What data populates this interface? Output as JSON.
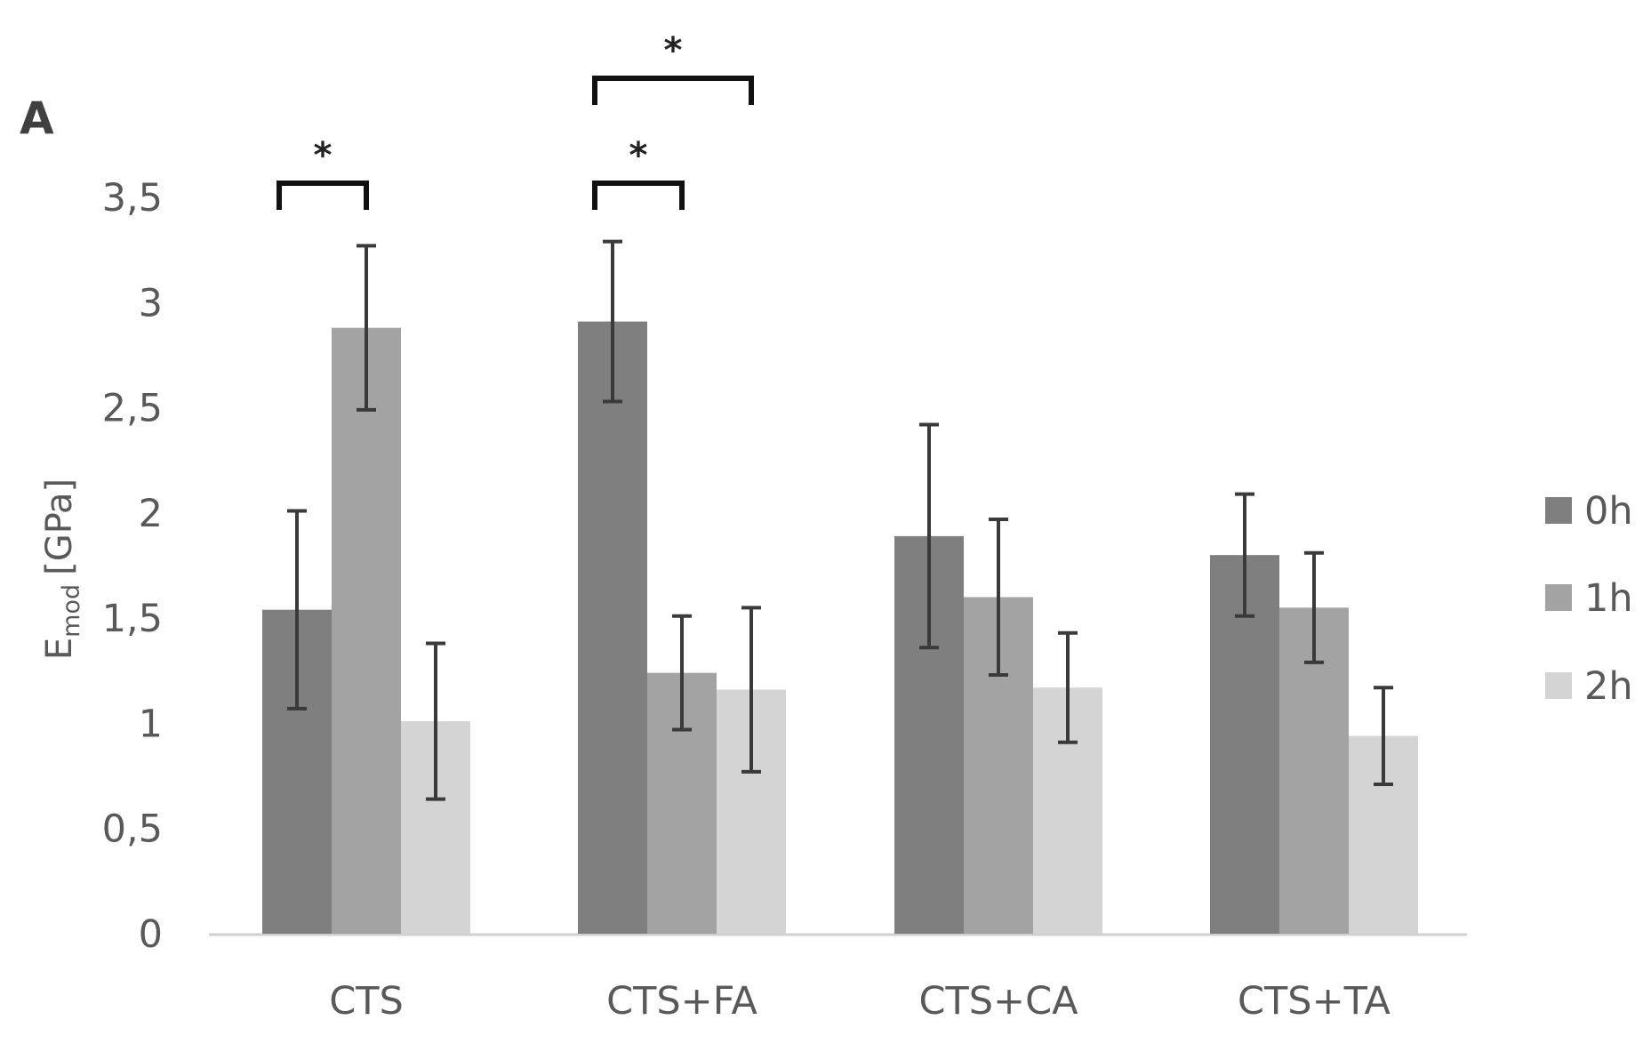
{
  "panel_label": "A",
  "chart_data": {
    "type": "bar",
    "title": "",
    "xlabel": "",
    "ylabel": {
      "main": "E",
      "subscript": "mod",
      "unit": "[GPa]"
    },
    "ylim": [
      0,
      3.5
    ],
    "ytick_values": [
      0,
      0.5,
      1,
      1.5,
      2,
      2.5,
      3,
      3.5
    ],
    "ytick_labels": [
      "0",
      "0,5",
      "1",
      "1,5",
      "2",
      "2,5",
      "3",
      "3,5"
    ],
    "categories": [
      "CTS",
      "CTS+FA",
      "CTS+CA",
      "CTS+TA"
    ],
    "series": [
      {
        "name": "0h",
        "values": [
          1.54,
          2.91,
          1.89,
          1.8
        ],
        "errors": [
          0.47,
          0.38,
          0.53,
          0.29
        ]
      },
      {
        "name": "1h",
        "values": [
          2.88,
          1.24,
          1.6,
          1.55
        ],
        "errors": [
          0.39,
          0.27,
          0.37,
          0.26
        ]
      },
      {
        "name": "2h",
        "values": [
          1.01,
          1.16,
          1.17,
          0.94
        ],
        "errors": [
          0.37,
          0.39,
          0.26,
          0.23
        ]
      }
    ],
    "colors": {
      "0h": "#7f7f7f",
      "1h": "#a3a3a3",
      "2h": "#d4d4d4"
    },
    "legend": {
      "position": "right",
      "entries": [
        "0h",
        "1h",
        "2h"
      ]
    },
    "significance": [
      {
        "category": "CTS",
        "from_series": "0h",
        "to_series": "1h",
        "label": "*"
      },
      {
        "category": "CTS+FA",
        "from_series": "0h",
        "to_series": "1h",
        "label": "*"
      },
      {
        "category": "CTS+FA",
        "from_series": "0h",
        "to_series": "2h",
        "label": "*"
      }
    ]
  }
}
